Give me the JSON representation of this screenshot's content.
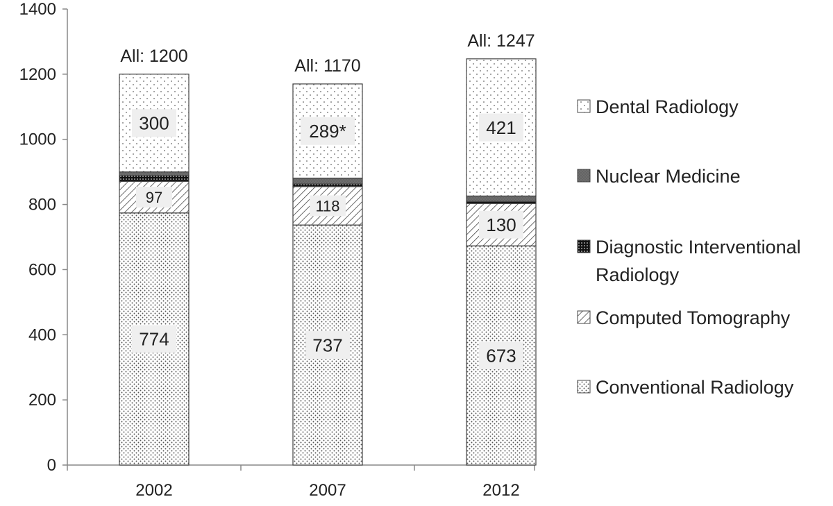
{
  "chart_data": {
    "type": "bar",
    "stacked": true,
    "categories": [
      "2002",
      "2007",
      "2012"
    ],
    "ylim": [
      0,
      1400
    ],
    "yticks": [
      0,
      200,
      400,
      600,
      800,
      1000,
      1200,
      1400
    ],
    "grid": false,
    "legend_position": "right",
    "totals": [
      {
        "label": "All: 1200",
        "value": 1200
      },
      {
        "label": "All: 1170",
        "value": 1170
      },
      {
        "label": "All: 1247",
        "value": 1247
      }
    ],
    "series": [
      {
        "name": "Conventional Radiology",
        "values": [
          774,
          737,
          673
        ],
        "labels": [
          "774",
          "737",
          "673"
        ],
        "pattern": "fine-dots"
      },
      {
        "name": "Computed Tomography",
        "values": [
          97,
          118,
          130
        ],
        "labels": [
          "97",
          "118",
          "130"
        ],
        "pattern": "diagonal-hatch"
      },
      {
        "name": "Diagnostic Interventional Radiology",
        "values": [
          18,
          8,
          6
        ],
        "labels": [
          "",
          "",
          ""
        ],
        "pattern": "dense-black-dots"
      },
      {
        "name": "Nuclear Medicine",
        "values": [
          11,
          18,
          17
        ],
        "labels": [
          "",
          "",
          ""
        ],
        "pattern": "dark-gray"
      },
      {
        "name": "Dental Radiology",
        "values": [
          300,
          289,
          421
        ],
        "labels": [
          "300",
          "289*",
          "421"
        ],
        "pattern": "sparse-dots"
      }
    ],
    "colors": {
      "axis": "#888888",
      "bar_outline": "#444444",
      "label_box": "#efefef",
      "text": "#222222"
    }
  }
}
